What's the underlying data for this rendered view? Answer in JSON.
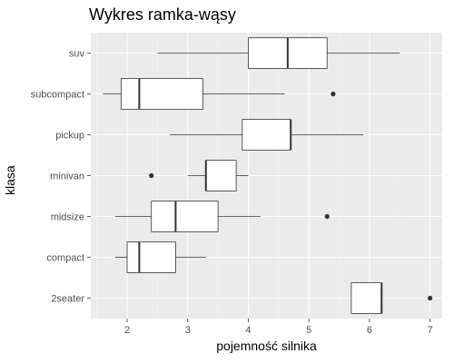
{
  "chart_data": {
    "type": "boxplot",
    "title": "Wykres ramka-wąsy",
    "xlabel": "pojemność silnika",
    "ylabel": "klasa",
    "xlim": [
      1.4,
      7.2
    ],
    "xticks": [
      2,
      3,
      4,
      5,
      6,
      7
    ],
    "grid": true,
    "categories": [
      "2seater",
      "compact",
      "midsize",
      "minivan",
      "pickup",
      "subcompact",
      "suv"
    ],
    "boxes": [
      {
        "category": "2seater",
        "whisker_low": 5.7,
        "q1": 5.7,
        "median": 6.2,
        "q3": 6.2,
        "whisker_high": 6.2,
        "outliers": [
          7.0
        ]
      },
      {
        "category": "compact",
        "whisker_low": 1.8,
        "q1": 2.0,
        "median": 2.2,
        "q3": 2.8,
        "whisker_high": 3.3,
        "outliers": []
      },
      {
        "category": "midsize",
        "whisker_low": 1.8,
        "q1": 2.4,
        "median": 2.8,
        "q3": 3.5,
        "whisker_high": 4.2,
        "outliers": [
          5.3
        ]
      },
      {
        "category": "minivan",
        "whisker_low": 3.0,
        "q1": 3.3,
        "median": 3.3,
        "q3": 3.8,
        "whisker_high": 4.0,
        "outliers": [
          2.4
        ]
      },
      {
        "category": "pickup",
        "whisker_low": 2.7,
        "q1": 3.9,
        "median": 4.7,
        "q3": 4.7,
        "whisker_high": 5.9,
        "outliers": []
      },
      {
        "category": "subcompact",
        "whisker_low": 1.6,
        "q1": 1.9,
        "median": 2.2,
        "q3": 3.25,
        "whisker_high": 4.6,
        "outliers": [
          5.4
        ]
      },
      {
        "category": "suv",
        "whisker_low": 2.5,
        "q1": 4.0,
        "median": 4.65,
        "q3": 5.3,
        "whisker_high": 6.5,
        "outliers": []
      }
    ]
  }
}
